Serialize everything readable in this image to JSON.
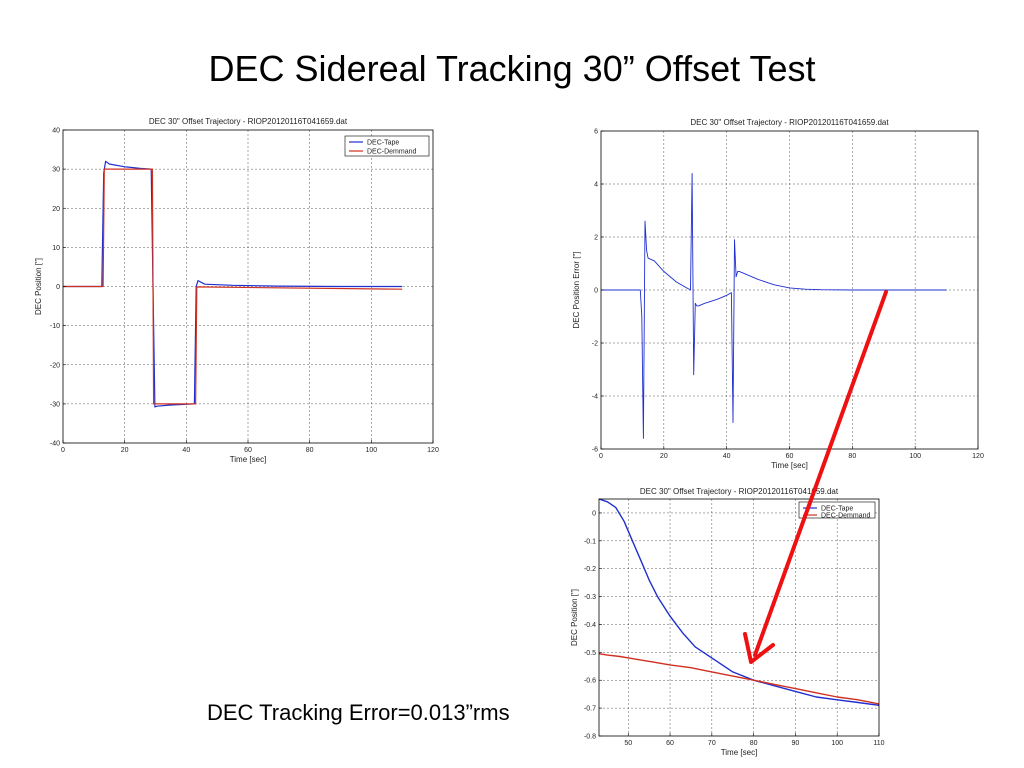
{
  "slide": {
    "title": "DEC Sidereal Tracking 30” Offset Test",
    "caption": "DEC Tracking Error=0.013”rms"
  },
  "colors": {
    "tape": "#1f2fd0",
    "demand": "#d0301f",
    "arrow": "#ee1111"
  },
  "chart_data": [
    {
      "type": "line",
      "title": "DEC 30\" Offset Trajectory - RIOP20120116T041659.dat",
      "xlabel": "Time [sec]",
      "ylabel": "DEC Position [\"]",
      "xlim": [
        0,
        120
      ],
      "ylim": [
        -40,
        40
      ],
      "xticks": [
        0,
        20,
        40,
        60,
        80,
        100,
        120
      ],
      "yticks": [
        -40,
        -30,
        -20,
        -10,
        0,
        10,
        20,
        30,
        40
      ],
      "grid": true,
      "legend": "top-right",
      "series": [
        {
          "name": "DEC-Tape",
          "color_key": "tape",
          "x": [
            0,
            12.6,
            13.2,
            13.8,
            15,
            20,
            25,
            28.6,
            29.2,
            29.8,
            30.5,
            35,
            40,
            42.6,
            43.2,
            43.8,
            46,
            55,
            70,
            90,
            110
          ],
          "y": [
            0,
            0,
            29,
            32,
            31.3,
            30.6,
            30.2,
            30,
            0,
            -30.8,
            -30.6,
            -30.3,
            -30.1,
            -30,
            0,
            1.5,
            0.6,
            0.3,
            0.1,
            0,
            0
          ]
        },
        {
          "name": "DEC-Demmand",
          "color_key": "demand",
          "x": [
            0,
            13,
            13.4,
            29,
            29.4,
            43,
            43.4,
            110
          ],
          "y": [
            0,
            0,
            30,
            30,
            -30,
            -30,
            -0.1,
            -0.7
          ]
        }
      ]
    },
    {
      "type": "line",
      "title": "DEC 30\" Offset Trajectory - RIOP20120116T041659.dat",
      "xlabel": "Time [sec]",
      "ylabel": "DEC Position Error [\"]",
      "xlim": [
        0,
        120
      ],
      "ylim": [
        -6,
        6
      ],
      "xticks": [
        0,
        20,
        40,
        60,
        80,
        100,
        120
      ],
      "yticks": [
        -6,
        -4,
        -2,
        0,
        2,
        4,
        6
      ],
      "grid": true,
      "series": [
        {
          "name": "",
          "color_key": "tape",
          "x": [
            0,
            12.5,
            13,
            13.5,
            14,
            14.5,
            15,
            17,
            20,
            24,
            27,
            28.5,
            29,
            29.5,
            30,
            30.5,
            31,
            33,
            37,
            40,
            41.5,
            42,
            42.5,
            43,
            43.5,
            44,
            46,
            50,
            55,
            60,
            65,
            70,
            80,
            90,
            100,
            110
          ],
          "y": [
            0,
            0,
            -1,
            -5.6,
            2.6,
            1.5,
            1.2,
            1.1,
            0.7,
            0.3,
            0.1,
            0,
            4.4,
            -3.2,
            -0.5,
            -0.6,
            -0.6,
            -0.5,
            -0.35,
            -0.2,
            -0.1,
            -5,
            1.9,
            0.5,
            0.7,
            0.7,
            0.6,
            0.4,
            0.2,
            0.08,
            0.03,
            0.01,
            0,
            0,
            0,
            0
          ]
        }
      ]
    },
    {
      "type": "line",
      "title": "DEC 30\" Offset Trajectory - RIOP20120116T041659.dat",
      "xlabel": "Time [sec]",
      "ylabel": "DEC Position [\"]",
      "xlim": [
        43,
        110
      ],
      "ylim": [
        -0.8,
        0.05
      ],
      "xticks": [
        50,
        60,
        70,
        80,
        90,
        100,
        110
      ],
      "yticks": [
        0,
        -0.1,
        -0.2,
        -0.3,
        -0.4,
        -0.5,
        -0.6,
        -0.7,
        -0.8
      ],
      "ytick_labels": [
        "0",
        "-0.1",
        "-0.2",
        "-0.3",
        "-0.4",
        "-0.5",
        "-0.6",
        "-0.7",
        "-0.8"
      ],
      "grid": true,
      "legend": "top-right",
      "series": [
        {
          "name": "DEC-Tape",
          "color_key": "tape",
          "x": [
            43,
            45,
            47,
            49,
            51,
            53,
            55,
            57,
            60,
            63,
            66,
            70,
            75,
            80,
            85,
            90,
            95,
            100,
            105,
            110
          ],
          "y": [
            0.05,
            0.04,
            0.02,
            -0.03,
            -0.1,
            -0.17,
            -0.24,
            -0.3,
            -0.37,
            -0.43,
            -0.48,
            -0.52,
            -0.57,
            -0.6,
            -0.62,
            -0.64,
            -0.66,
            -0.67,
            -0.68,
            -0.69
          ]
        },
        {
          "name": "DEC-Demmand",
          "color_key": "demand",
          "x": [
            43,
            45,
            48,
            52,
            56,
            60,
            65,
            70,
            75,
            80,
            85,
            90,
            95,
            100,
            105,
            110
          ],
          "y": [
            -0.505,
            -0.51,
            -0.515,
            -0.525,
            -0.535,
            -0.545,
            -0.555,
            -0.57,
            -0.585,
            -0.6,
            -0.615,
            -0.63,
            -0.645,
            -0.66,
            -0.67,
            -0.685
          ]
        }
      ]
    }
  ]
}
